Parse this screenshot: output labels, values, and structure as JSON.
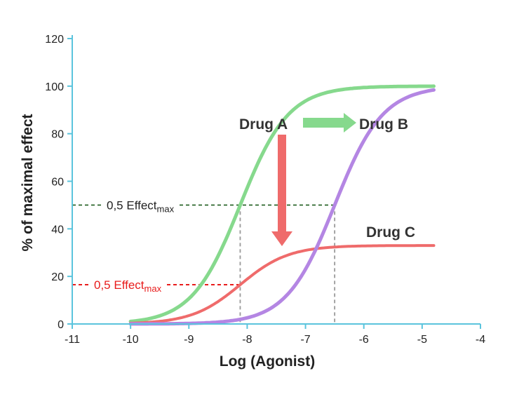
{
  "chart_data": {
    "type": "line",
    "xlabel": "Log (Agonist)",
    "ylabel": "% of maximal effect",
    "xlim": [
      -11,
      -4
    ],
    "ylim": [
      0,
      120
    ],
    "x_ticks": [
      -11,
      -10,
      -9,
      -8,
      -7,
      -6,
      -5,
      -4
    ],
    "y_ticks": [
      0,
      20,
      40,
      60,
      80,
      100,
      120
    ],
    "grid": false,
    "x_range_curves": [
      -10,
      -4.8
    ],
    "series": [
      {
        "name": "Drug A",
        "color": "#86d98d",
        "emax": 100,
        "log_ec50": -8.12,
        "hill": 1.05
      },
      {
        "name": "Drug B",
        "color": "#b486e3",
        "emax": 100,
        "log_ec50": -6.5,
        "hill": 1.05
      },
      {
        "name": "Drug C",
        "color": "#ef6b6b",
        "emax": 33,
        "log_ec50": -8.12,
        "hill": 1.05
      }
    ],
    "annotations": [
      {
        "text": "0,5 Effect",
        "sub": "max",
        "color": "#1e5c1e",
        "y": 50,
        "x_from": -11,
        "x_to": -6.5,
        "drop_x": [
          -8.12,
          -6.5
        ]
      },
      {
        "text": "0,5 Effect",
        "sub": "max",
        "color": "#e81c1c",
        "y": 16.5,
        "x_from": -11,
        "x_to": -8.12
      }
    ],
    "arrows": [
      {
        "from": "Drug A",
        "to": "Drug B",
        "color": "#86d98d"
      },
      {
        "from": "Drug A",
        "to": "Drug C",
        "color": "#ef6b6b"
      }
    ],
    "axis_color": "#5bc4dd"
  }
}
